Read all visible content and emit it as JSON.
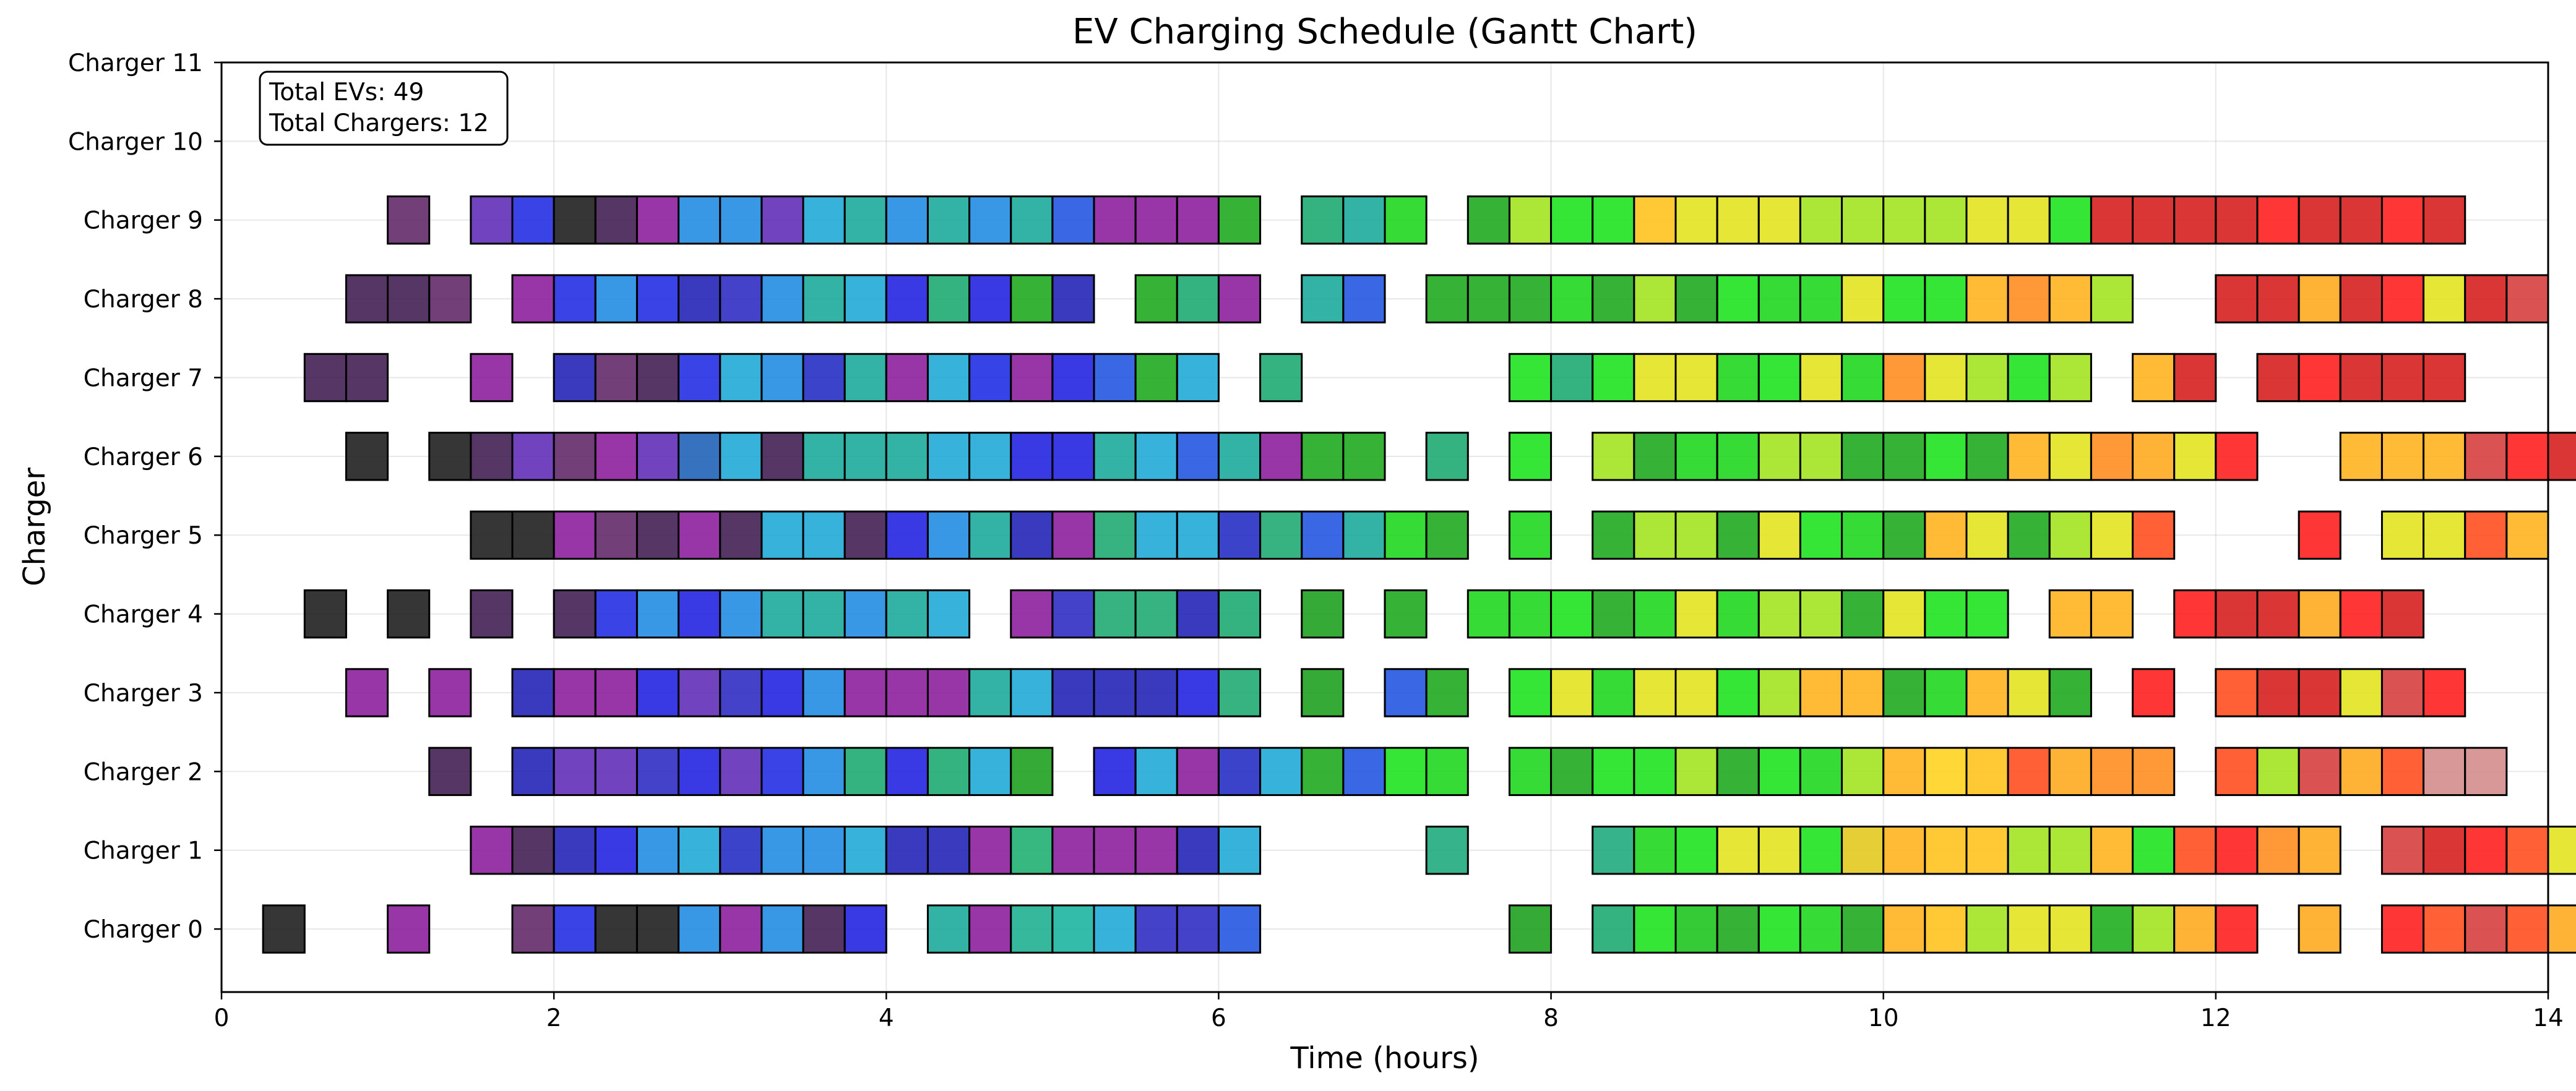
{
  "chart_data": {
    "type": "gantt",
    "title": "EV Charging Schedule (Gantt Chart)",
    "xlabel": "Time (hours)",
    "ylabel": "Charger",
    "xlim": [
      0,
      14
    ],
    "xticks": [
      0,
      2,
      4,
      6,
      8,
      10,
      12,
      14
    ],
    "xtick_labels": [
      "0",
      "2",
      "4",
      "6",
      "8",
      "10",
      "12",
      "14"
    ],
    "ylim": [
      -0.8,
      11
    ],
    "categories": [
      "Charger 0",
      "Charger 1",
      "Charger 2",
      "Charger 3",
      "Charger 4",
      "Charger 5",
      "Charger 6",
      "Charger 7",
      "Charger 8",
      "Charger 9",
      "Charger 10",
      "Charger 11"
    ],
    "grid": true,
    "slot_hours": 0.25,
    "annotation": {
      "total_evs_label": "Total EVs: 49",
      "total_chargers_label": "Total Chargers: 12",
      "placement": "top-left"
    },
    "rows": [
      {
        "charger": 0,
        "start": 0.25,
        "colors": [
          "#1a1a1a",
          "",
          "",
          "#8b1a9b",
          "",
          "",
          "#5e2466",
          "#1f29e2",
          "#1a1a1a",
          "#1a1a1a",
          "#1c8ae2",
          "#8b1a9b",
          "#1c8ae2",
          "#3e1a4f",
          "#1f1fe0",
          "",
          "#17a79a",
          "#8b1a9b",
          "#1aae8f",
          "#17b39e",
          "#1ba8d6",
          "#2a28c1",
          "#2a28c1",
          "#1f52e0",
          "",
          "",
          "",
          "",
          "",
          "",
          "#1a9e1a",
          "",
          "#18a870",
          "#1ae21a",
          "#18c41a",
          "#1aa81a",
          "#1ae21a",
          "#1ad61a",
          "#1aa81a",
          "#ffb21a",
          "#ffc21a",
          "#a0e21a",
          "#e2e21a",
          "#e2e21a",
          "#1aae1a",
          "#a0e21a",
          "#ffa81a",
          "#ff1a1a",
          "",
          "#ffa81a",
          "",
          "#ff1a1a",
          "#ff4a1a",
          "#d63a3a",
          "#ff4a1a",
          "#ffa81a",
          "#d4d4d4"
        ]
      },
      {
        "charger": 1,
        "start": 1.5,
        "colors": [
          "#8b1a9b",
          "#3e1a4f",
          "#1f1fb5",
          "#1f1fe0",
          "#1c8ae2",
          "#1ba8d6",
          "#1f29c1",
          "#1c8ae2",
          "#1c8ae2",
          "#1ba8d6",
          "#1f1fb5",
          "#1f1fb5",
          "#8b1a9b",
          "#1aae6e",
          "#8b1a9b",
          "#8b1a9b",
          "#8b1a9b",
          "#1f1fb5",
          "#1ba8d6",
          "",
          "",
          "",
          "",
          "#1aa87a",
          "",
          "",
          "",
          "#1aa87a",
          "#1ad61a",
          "#1ae21a",
          "#e2e21a",
          "#e2e21a",
          "#1ae21a",
          "#e2c81a",
          "#ffb21a",
          "#ffc21a",
          "#ffc21a",
          "#a0e21a",
          "#a0e21a",
          "#ffb21a",
          "#1ae21a",
          "#ff4a1a",
          "#ff1a1a",
          "#ff8a1a",
          "#ffa81a",
          "",
          "#d63a3a",
          "#d61a1a",
          "#ff1a1a",
          "#ff4a1a",
          "#e2e21a",
          "#ff4a1a"
        ]
      },
      {
        "charger": 2,
        "start": 1.25,
        "colors": [
          "#3e1a4f",
          "",
          "#1f1fb5",
          "#5e29b5",
          "#5e29b5",
          "#2a28c1",
          "#1f1fe0",
          "#5e29b5",
          "#1f29e2",
          "#1c8ae2",
          "#18a870",
          "#1f1fe0",
          "#18a870",
          "#1ba8d6",
          "#1a9e1a",
          "",
          "#1f1fe0",
          "#1ba8d6",
          "#8b1a9b",
          "#1f29c1",
          "#1ba8d6",
          "#1aa81a",
          "#1f52e0",
          "#1ae21a",
          "#1ad61a",
          "",
          "#1ad61a",
          "#1aa81a",
          "#1ae21a",
          "#1ae21a",
          "#a0e21a",
          "#1aa81a",
          "#1ae21a",
          "#1ad61a",
          "#a0e21a",
          "#ffb21a",
          "#ffd21a",
          "#ffc21a",
          "#ff4a1a",
          "#ffa81a",
          "#ff8a1a",
          "#ff8a1a",
          "",
          "#ff4a1a",
          "#a0e21a",
          "#d63a3a",
          "#ffa81a",
          "#ff4a1a",
          "#d48a8a",
          "#d48a8a"
        ]
      },
      {
        "charger": 3,
        "start": 0.75,
        "colors": [
          "#8b1a9b",
          "",
          "#8b1a9b",
          "",
          "#1f1fb5",
          "#8b1a9b",
          "#8b1a9b",
          "#1f1fe0",
          "#5e29b5",
          "#2a28c1",
          "#1f1fe0",
          "#1c8ae2",
          "#8b1a9b",
          "#8b1a9b",
          "#8b1a9b",
          "#17a79a",
          "#1ba8d6",
          "#1f1fb5",
          "#1f1fb5",
          "#1f1fb5",
          "#1f1fe0",
          "#1aa870",
          "",
          "#1a9e1a",
          "",
          "#1f52e0",
          "#1aa81a",
          "",
          "#1ae21a",
          "#e2e21a",
          "#1ad61a",
          "#e2e21a",
          "#e2e21a",
          "#1ae21a",
          "#a0e21a",
          "#ffb21a",
          "#ffb21a",
          "#1aa81a",
          "#1ad61a",
          "#ffb21a",
          "#e2e21a",
          "#1aa81a",
          "",
          "#ff1a1a",
          "",
          "#ff4a1a",
          "#d61a1a",
          "#d61a1a",
          "#e2e21a",
          "#d63a3a",
          "#ff1a1a"
        ]
      },
      {
        "charger": 4,
        "start": 0.5,
        "colors": [
          "#1a1a1a",
          "",
          "#1a1a1a",
          "",
          "#3e1a4f",
          "",
          "#3e1a4f",
          "#1f29e2",
          "#1c8ae2",
          "#1f1fe0",
          "#1c8ae2",
          "#17a79a",
          "#17a79a",
          "#1c8ae2",
          "#17a79a",
          "#1ba8d6",
          "",
          "#8b1a9b",
          "#2a28c1",
          "#1aa870",
          "#1aa870",
          "#1f1fb5",
          "#18a870",
          "",
          "#1a9e1a",
          "",
          "#1aa81a",
          "",
          "#1ad61a",
          "#1ad61a",
          "#1ae21a",
          "#1aa81a",
          "#1ad61a",
          "#e2e21a",
          "#1ad61a",
          "#a0e21a",
          "#a0e21a",
          "#1aa81a",
          "#e2e21a",
          "#1ae21a",
          "#1ae21a",
          "",
          "#ffb21a",
          "#ffb21a",
          "",
          "#ff1a1a",
          "#d61a1a",
          "#d61a1a",
          "#ffa81a",
          "#ff1a1a",
          "#d61a1a"
        ]
      },
      {
        "charger": 5,
        "start": 1.5,
        "colors": [
          "#1a1a1a",
          "#1a1a1a",
          "#8b1a9b",
          "#5e2466",
          "#3e1a4f",
          "#8b1a9b",
          "#3e1a4f",
          "#1ba8d6",
          "#1ba8d6",
          "#3e1a4f",
          "#1f1fe0",
          "#1c8ae2",
          "#17a79a",
          "#1f1fb5",
          "#8b1a9b",
          "#1aa870",
          "#1ba8d6",
          "#1ba8d6",
          "#1f29c1",
          "#1aa870",
          "#1f52e0",
          "#17a79a",
          "#1ad61a",
          "#1aa81a",
          "",
          "#1ad61a",
          "",
          "#1aa81a",
          "#a0e21a",
          "#a0e21a",
          "#1aa81a",
          "#e2e21a",
          "#1ae21a",
          "#1ad61a",
          "#1aa81a",
          "#ffb21a",
          "#e2e21a",
          "#1aa81a",
          "#a0e21a",
          "#e2e21a",
          "#ff4a1a",
          "",
          "",
          "",
          "#ff1a1a",
          "",
          "#e2e21a",
          "#e2e21a",
          "#ff4a1a",
          "#ffb21a"
        ]
      },
      {
        "charger": 6,
        "start": 0.75,
        "colors": [
          "#1a1a1a",
          "",
          "#1a1a1a",
          "#3e1a4f",
          "#5e29b5",
          "#5e2466",
          "#8b1a9b",
          "#5e29b5",
          "#1a5eb5",
          "#1ba8d6",
          "#3e1a4f",
          "#17a79a",
          "#17a79a",
          "#17a79a",
          "#1ba8d6",
          "#1ba8d6",
          "#1f1fe0",
          "#1f1fe0",
          "#17a79a",
          "#1ba8d6",
          "#1f52e0",
          "#17a79a",
          "#8b1a9b",
          "#1aa81a",
          "#1aa81a",
          "",
          "#18a870",
          "",
          "#1ae21a",
          "",
          "#a0e21a",
          "#1aa81a",
          "#1ad61a",
          "#1ad61a",
          "#a0e21a",
          "#a0e21a",
          "#1aa81a",
          "#1aa81a",
          "#1ae21a",
          "#1aa81a",
          "#ffb21a",
          "#e2e21a",
          "#ff8a1a",
          "#ffa81a",
          "#e2e21a",
          "#ff1a1a",
          "",
          "",
          "#ffb21a",
          "#ffb21a",
          "#ffb21a",
          "#d63a3a",
          "#ff1a1a",
          "#d61a1a"
        ]
      },
      {
        "charger": 7,
        "start": 0.5,
        "colors": [
          "#3e1a4f",
          "#3e1a4f",
          "",
          "",
          "#8b1a9b",
          "",
          "#1f1fb5",
          "#5e2466",
          "#3e1a4f",
          "#1f29e2",
          "#1ba8d6",
          "#1c8ae2",
          "#1f29c1",
          "#17a79a",
          "#8b1a9b",
          "#1ba8d6",
          "#1a29e2",
          "#8b1a9b",
          "#1f1fe0",
          "#1f52e0",
          "#1aa81a",
          "#1ba8d6",
          "",
          "#18a870",
          "",
          "",
          "",
          "",
          "",
          "#1ae21a",
          "#18a870",
          "#1ae21a",
          "#e2e21a",
          "#e2e21a",
          "#1ad61a",
          "#1ae21a",
          "#e2e21a",
          "#1ad61a",
          "#ff8a1a",
          "#e2e21a",
          "#a0e21a",
          "#1ae21a",
          "#a0e21a",
          "",
          "#ffb21a",
          "#d61a1a",
          "",
          "#d61a1a",
          "#ff1a1a",
          "#d61a1a",
          "#d61a1a",
          "#d61a1a"
        ]
      },
      {
        "charger": 8,
        "start": 0.75,
        "colors": [
          "#3e1a4f",
          "#3e1a4f",
          "#5e2466",
          "",
          "#8b1a9b",
          "#1f29e2",
          "#1c8ae2",
          "#1f29e2",
          "#1f1fb5",
          "#2a28c1",
          "#1c8ae2",
          "#17a79a",
          "#1ba8d6",
          "#1f1fe0",
          "#18a870",
          "#1f1fe0",
          "#1aa81a",
          "#1f1fb5",
          "",
          "#1aa81a",
          "#18a870",
          "#8b1a9b",
          "",
          "#17a79a",
          "#1f52e0",
          "",
          "#1aa81a",
          "#1aa81a",
          "#1aa81a",
          "#1ad61a",
          "#1aa81a",
          "#a0e21a",
          "#1aa81a",
          "#1ae21a",
          "#1ad61a",
          "#1ad61a",
          "#e2e21a",
          "#1ae21a",
          "#1ae21a",
          "#ffb21a",
          "#ff8a1a",
          "#ffb21a",
          "#a0e21a",
          "",
          "",
          "#d61a1a",
          "#d61a1a",
          "#ffa81a",
          "#d61a1a",
          "#ff1a1a",
          "#e2e21a",
          "#d61a1a",
          "#d63a3a"
        ]
      },
      {
        "charger": 9,
        "start": 1.0,
        "colors": [
          "#5e2466",
          "",
          "#5e29b5",
          "#1f29e2",
          "#1a1a1a",
          "#3e1a4f",
          "#8b1a9b",
          "#1c8ae2",
          "#1c8ae2",
          "#5e29b5",
          "#1ba8d6",
          "#17a79a",
          "#1c8ae2",
          "#17a79a",
          "#1c8ae2",
          "#17a79a",
          "#1f52e0",
          "#8b1a9b",
          "#8b1a9b",
          "#8b1a9b",
          "#1aa81a",
          "",
          "#18a870",
          "#17a79a",
          "#1ad61a",
          "",
          "#1aa81a",
          "#a0e21a",
          "#1ae21a",
          "#1ae21a",
          "#ffc21a",
          "#e2e21a",
          "#e2e21a",
          "#e2e21a",
          "#a0e21a",
          "#a0e21a",
          "#a0e21a",
          "#a0e21a",
          "#e2e21a",
          "#e2e21a",
          "#1ae21a",
          "#d61a1a",
          "#d61a1a",
          "#d61a1a",
          "#d61a1a",
          "#ff1a1a",
          "#d61a1a",
          "#d61a1a",
          "#ff1a1a",
          "#d61a1a"
        ]
      },
      {
        "charger": 10,
        "start": 0,
        "colors": []
      },
      {
        "charger": 11,
        "start": 0,
        "colors": []
      }
    ]
  }
}
